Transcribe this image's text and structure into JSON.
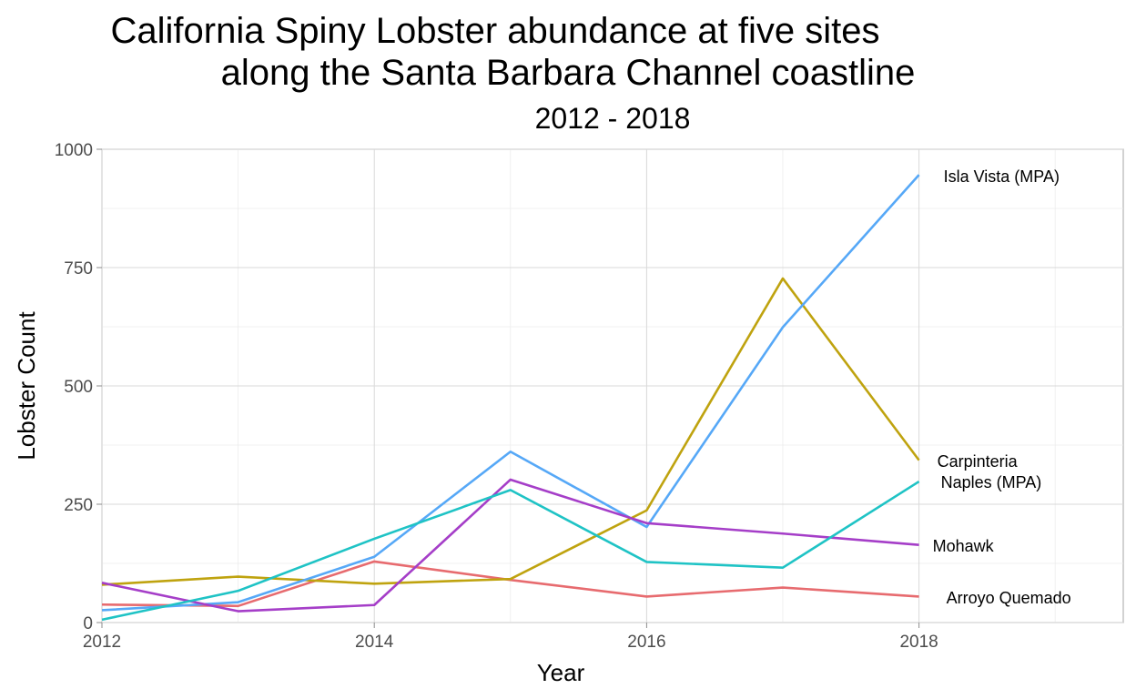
{
  "chart_data": {
    "type": "line",
    "title": "California Spiny Lobster abundance at five sites along the Santa Barbara Channel coastline",
    "title_lines": [
      "California Spiny Lobster abundance at five sites",
      "along the Santa Barbara Channel coastline"
    ],
    "subtitle": "2012 - 2018",
    "xlabel": "Year",
    "ylabel": "Lobster Count",
    "xlim": [
      2012,
      2019.5
    ],
    "ylim": [
      0,
      1000
    ],
    "x_ticks": [
      2012,
      2014,
      2016,
      2018
    ],
    "y_ticks": [
      0,
      250,
      500,
      750,
      1000
    ],
    "grid": true,
    "legend": "direct labels at line ends",
    "x": [
      2012,
      2013,
      2014,
      2015,
      2016,
      2017,
      2018
    ],
    "series": [
      {
        "name": "Arroyo Quemado",
        "color": "#E76B6F",
        "values": [
          38,
          35,
          129,
          90,
          55,
          74,
          55
        ]
      },
      {
        "name": "Carpinteria",
        "color": "#BFA30F",
        "values": [
          80,
          97,
          82,
          92,
          237,
          727,
          343
        ]
      },
      {
        "name": "Isla Vista (MPA)",
        "color": "#56A8F7",
        "values": [
          26,
          43,
          139,
          361,
          202,
          624,
          946
        ]
      },
      {
        "name": "Mohawk",
        "color": "#A53EC8",
        "values": [
          84,
          24,
          37,
          302,
          210,
          188,
          164
        ]
      },
      {
        "name": "Naples (MPA)",
        "color": "#1FC3C5",
        "values": [
          6,
          67,
          177,
          280,
          128,
          116,
          298
        ]
      }
    ]
  }
}
